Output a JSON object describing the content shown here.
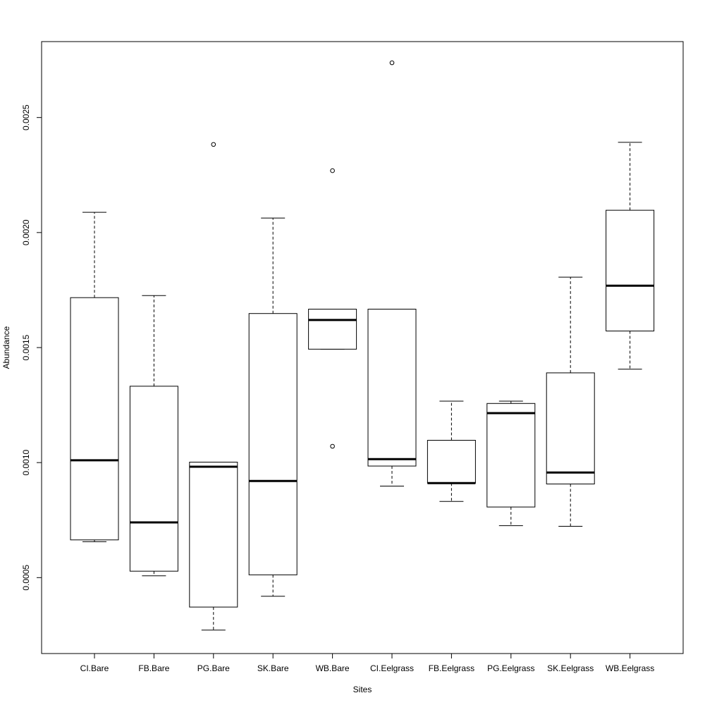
{
  "chart_data": {
    "type": "boxplot",
    "title": "",
    "xlabel": "Sites",
    "ylabel": "Abundance",
    "ylim": [
      0.00017,
      0.00283
    ],
    "yticks": [
      0.0005,
      0.001,
      0.0015,
      0.002,
      0.0025
    ],
    "ytick_labels": [
      "0.0005",
      "0.0010",
      "0.0015",
      "0.0020",
      "0.0025"
    ],
    "categories": [
      "CI.Bare",
      "FB.Bare",
      "PG.Bare",
      "SK.Bare",
      "WB.Bare",
      "CI.Eelgrass",
      "FB.Eelgrass",
      "PG.Eelgrass",
      "SK.Eelgrass",
      "WB.Eelgrass"
    ],
    "boxes": [
      {
        "category": "CI.Bare",
        "whisker_low": 0.000656,
        "q1": 0.000664,
        "median": 0.00101,
        "q3": 0.001717,
        "whisker_high": 0.002088,
        "outliers": []
      },
      {
        "category": "FB.Bare",
        "whisker_low": 0.000508,
        "q1": 0.000528,
        "median": 0.00074,
        "q3": 0.001332,
        "whisker_high": 0.001726,
        "outliers": []
      },
      {
        "category": "PG.Bare",
        "whisker_low": 0.000272,
        "q1": 0.000372,
        "median": 0.000982,
        "q3": 0.001002,
        "whisker_high": 0.001002,
        "outliers": [
          0.002383
        ]
      },
      {
        "category": "SK.Bare",
        "whisker_low": 0.000419,
        "q1": 0.000512,
        "median": 0.00092,
        "q3": 0.001648,
        "whisker_high": 0.002063,
        "outliers": []
      },
      {
        "category": "WB.Bare",
        "whisker_low": 0.001493,
        "q1": 0.001493,
        "median": 0.00162,
        "q3": 0.001667,
        "whisker_high": 0.001667,
        "outliers": [
          0.002269,
          0.001071
        ]
      },
      {
        "category": "CI.Eelgrass",
        "whisker_low": 0.000898,
        "q1": 0.000985,
        "median": 0.001015,
        "q3": 0.001667,
        "whisker_high": 0.001667,
        "outliers": [
          0.002738
        ]
      },
      {
        "category": "FB.Eelgrass",
        "whisker_low": 0.000831,
        "q1": 0.000911,
        "median": 0.000911,
        "q3": 0.001097,
        "whisker_high": 0.001267,
        "outliers": []
      },
      {
        "category": "PG.Eelgrass",
        "whisker_low": 0.000726,
        "q1": 0.000807,
        "median": 0.001215,
        "q3": 0.001257,
        "whisker_high": 0.001267,
        "outliers": []
      },
      {
        "category": "SK.Eelgrass",
        "whisker_low": 0.000723,
        "q1": 0.000907,
        "median": 0.000957,
        "q3": 0.00139,
        "whisker_high": 0.001806,
        "outliers": []
      },
      {
        "category": "WB.Eelgrass",
        "whisker_low": 0.001406,
        "q1": 0.001572,
        "median": 0.001769,
        "q3": 0.002097,
        "whisker_high": 0.002392,
        "outliers": []
      }
    ],
    "grid": false,
    "legend": "none"
  }
}
